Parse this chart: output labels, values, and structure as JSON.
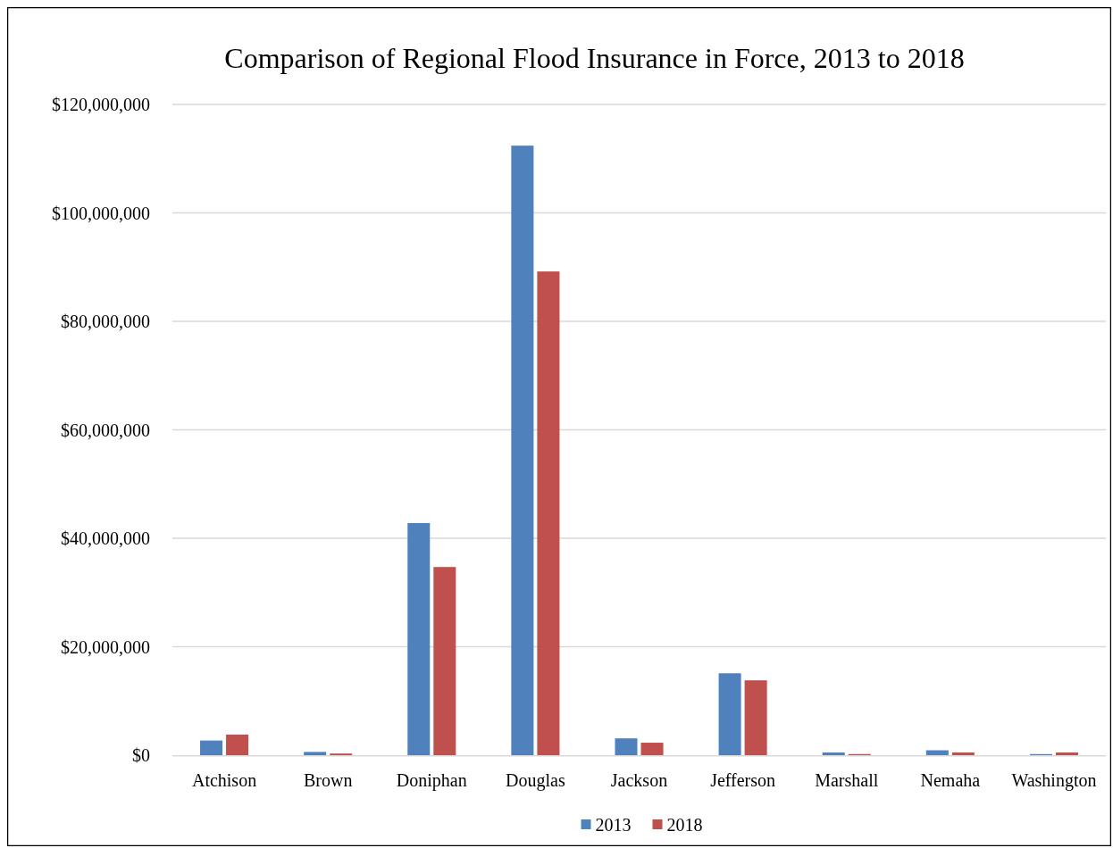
{
  "chart_data": {
    "type": "bar",
    "title": "Comparison of Regional Flood Insurance in Force, 2013 to 2018",
    "categories": [
      "Atchison",
      "Brown",
      "Doniphan",
      "Douglas",
      "Jackson",
      "Jefferson",
      "Marshall",
      "Nemaha",
      "Washington"
    ],
    "series": [
      {
        "name": "2013",
        "color": "#4f81bd",
        "values": [
          2700000,
          600000,
          42800000,
          112400000,
          3100000,
          15100000,
          500000,
          900000,
          200000
        ]
      },
      {
        "name": "2018",
        "color": "#c0504d",
        "values": [
          3800000,
          300000,
          34700000,
          89200000,
          2300000,
          13800000,
          200000,
          500000,
          500000
        ]
      }
    ],
    "ylim": [
      0,
      120000000
    ],
    "yticks": [
      {
        "value": 0,
        "label": "$0"
      },
      {
        "value": 20000000,
        "label": "$20,000,000"
      },
      {
        "value": 40000000,
        "label": "$40,000,000"
      },
      {
        "value": 60000000,
        "label": "$60,000,000"
      },
      {
        "value": 80000000,
        "label": "$80,000,000"
      },
      {
        "value": 100000000,
        "label": "$100,000,000"
      },
      {
        "value": 120000000,
        "label": "$120,000,000"
      }
    ],
    "grid": "y",
    "legend": "bottom"
  }
}
